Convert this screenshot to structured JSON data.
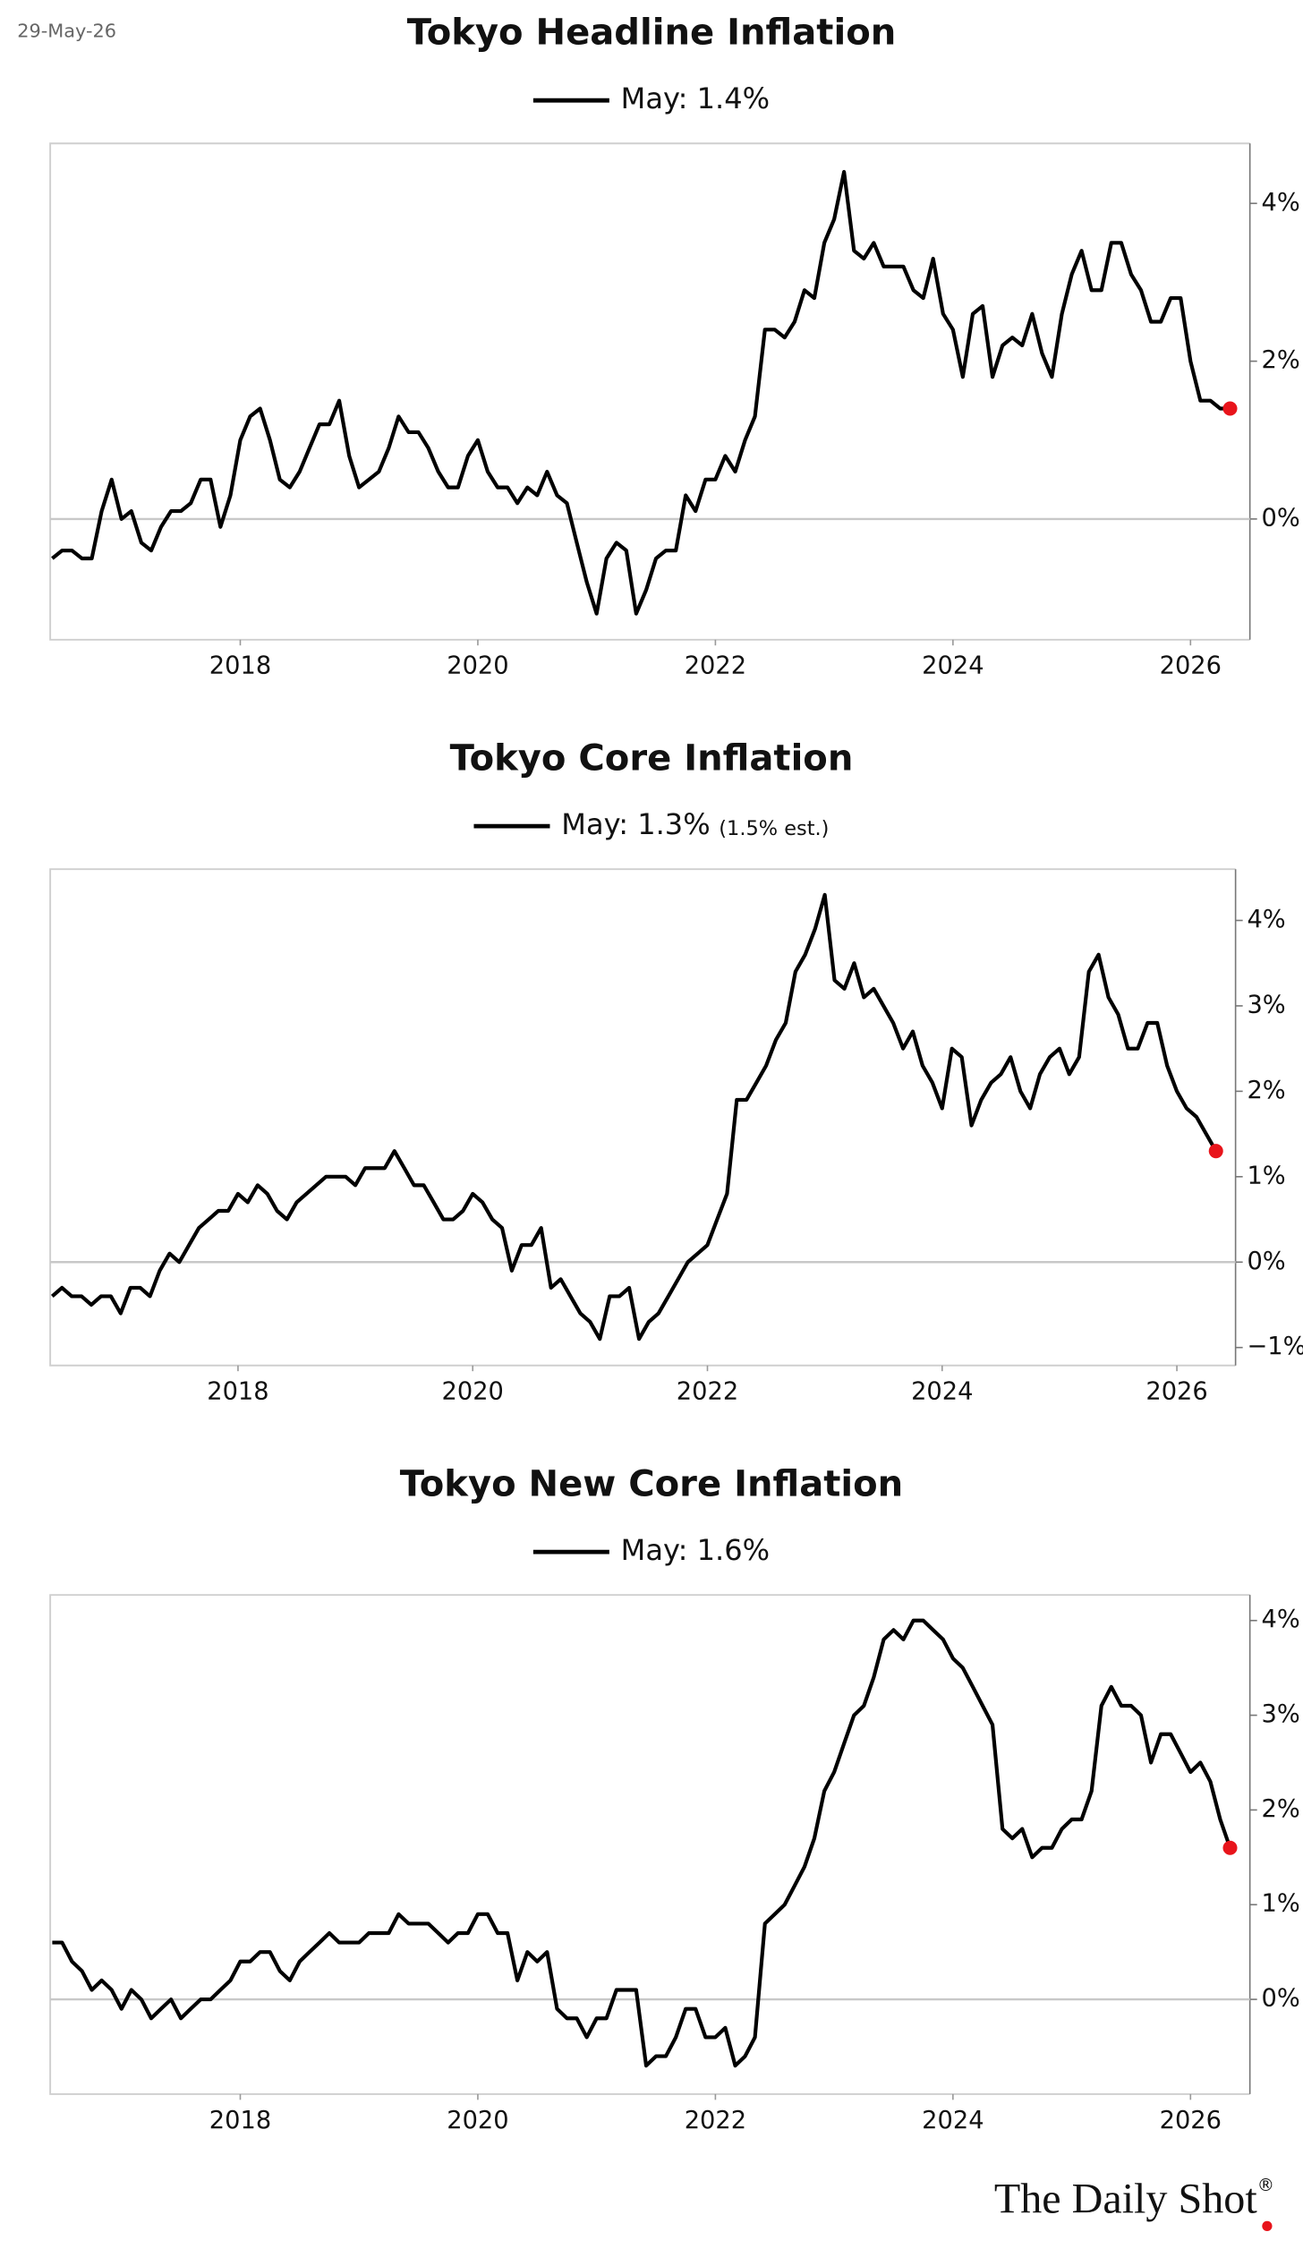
{
  "date": "29-May-26",
  "source": "The Daily Shot",
  "source_mark": "®",
  "chart_data": [
    {
      "type": "line",
      "title": "Tokyo Headline Inflation",
      "y_axis_side": "right",
      "zero_line": true,
      "last_point_color": "#e8141b",
      "x": [
        2016.417,
        2016.5,
        2016.583,
        2016.667,
        2016.75,
        2016.833,
        2016.917,
        2017,
        2017.083,
        2017.167,
        2017.25,
        2017.333,
        2017.417,
        2017.5,
        2017.583,
        2017.667,
        2017.75,
        2017.833,
        2017.917,
        2018,
        2018.083,
        2018.167,
        2018.25,
        2018.333,
        2018.417,
        2018.5,
        2018.583,
        2018.667,
        2018.75,
        2018.833,
        2018.917,
        2019,
        2019.083,
        2019.167,
        2019.25,
        2019.333,
        2019.417,
        2019.5,
        2019.583,
        2019.667,
        2019.75,
        2019.833,
        2019.917,
        2020,
        2020.083,
        2020.167,
        2020.25,
        2020.333,
        2020.417,
        2020.5,
        2020.583,
        2020.667,
        2020.75,
        2020.833,
        2020.917,
        2021,
        2021.083,
        2021.167,
        2021.25,
        2021.333,
        2021.417,
        2021.5,
        2021.583,
        2021.667,
        2021.75,
        2021.833,
        2021.917,
        2022,
        2022.083,
        2022.167,
        2022.25,
        2022.333,
        2022.417,
        2022.5,
        2022.583,
        2022.667,
        2022.75,
        2022.833,
        2022.917,
        2023,
        2023.083,
        2023.167,
        2023.25,
        2023.333,
        2023.417,
        2023.5,
        2023.583,
        2023.667,
        2023.75,
        2023.833,
        2023.917,
        2024,
        2024.083,
        2024.167,
        2024.25,
        2024.333,
        2024.417,
        2024.5,
        2024.583,
        2024.667,
        2024.75,
        2024.833,
        2024.917,
        2025,
        2025.083,
        2025.167,
        2025.25,
        2025.333,
        2025.417,
        2025.5,
        2025.583,
        2025.667,
        2025.75,
        2025.833,
        2025.917,
        2026,
        2026.083,
        2026.167,
        2026.25,
        2026.333
      ],
      "series": [
        {
          "name": "May: 1.4%",
          "color": "#000000",
          "values": [
            -0.5,
            -0.4,
            -0.4,
            -0.5,
            -0.5,
            0.1,
            0.5,
            0.0,
            0.1,
            -0.3,
            -0.4,
            -0.1,
            0.1,
            0.1,
            0.2,
            0.5,
            0.5,
            -0.1,
            0.3,
            1.0,
            1.3,
            1.4,
            1.0,
            0.5,
            0.4,
            0.6,
            0.9,
            1.2,
            1.2,
            1.5,
            0.8,
            0.4,
            0.5,
            0.6,
            0.9,
            1.3,
            1.1,
            1.1,
            0.9,
            0.6,
            0.4,
            0.4,
            0.8,
            1.0,
            0.6,
            0.4,
            0.4,
            0.2,
            0.4,
            0.3,
            0.6,
            0.3,
            0.2,
            -0.3,
            -0.8,
            -1.2,
            -0.5,
            -0.3,
            -0.4,
            -1.2,
            -0.9,
            -0.5,
            -0.4,
            -0.4,
            0.3,
            0.1,
            0.5,
            0.5,
            0.8,
            0.6,
            1.0,
            1.3,
            2.4,
            2.4,
            2.3,
            2.5,
            2.9,
            2.8,
            3.5,
            3.8,
            4.4,
            3.4,
            3.3,
            3.5,
            3.2,
            3.2,
            3.2,
            2.9,
            2.8,
            3.3,
            2.6,
            2.4,
            1.8,
            2.6,
            2.7,
            1.8,
            2.2,
            2.3,
            2.2,
            2.6,
            2.1,
            1.8,
            2.6,
            3.1,
            3.4,
            2.9,
            2.9,
            3.5,
            3.5,
            3.1,
            2.9,
            2.5,
            2.5,
            2.8,
            2.8,
            2.0,
            1.5,
            1.5,
            1.4,
            1.4
          ]
        }
      ],
      "xlim": [
        2016.4,
        2026.5
      ],
      "xticks": [
        2018,
        2020,
        2022,
        2024,
        2026
      ],
      "ylim": [
        -1.53,
        4.76
      ],
      "yticks": [
        {
          "value": 0,
          "label": "0%"
        },
        {
          "value": 2,
          "label": "2%"
        },
        {
          "value": 4,
          "label": "4%"
        }
      ]
    },
    {
      "type": "line",
      "title": "Tokyo Core Inflation",
      "legend_note": "(1.5% est.)",
      "y_axis_side": "right",
      "zero_line": true,
      "last_point_color": "#e8141b",
      "x": [
        2016.417,
        2016.5,
        2016.583,
        2016.667,
        2016.75,
        2016.833,
        2016.917,
        2017,
        2017.083,
        2017.167,
        2017.25,
        2017.333,
        2017.417,
        2017.5,
        2017.583,
        2017.667,
        2017.75,
        2017.833,
        2017.917,
        2018,
        2018.083,
        2018.167,
        2018.25,
        2018.333,
        2018.417,
        2018.5,
        2018.583,
        2018.667,
        2018.75,
        2018.833,
        2018.917,
        2019,
        2019.083,
        2019.167,
        2019.25,
        2019.333,
        2019.417,
        2019.5,
        2019.583,
        2019.667,
        2019.75,
        2019.833,
        2019.917,
        2020,
        2020.083,
        2020.167,
        2020.25,
        2020.333,
        2020.417,
        2020.5,
        2020.583,
        2020.667,
        2020.75,
        2020.833,
        2020.917,
        2021,
        2021.083,
        2021.167,
        2021.25,
        2021.333,
        2021.417,
        2021.5,
        2021.583,
        2021.667,
        2021.75,
        2021.833,
        2021.917,
        2022,
        2022.083,
        2022.167,
        2022.25,
        2022.333,
        2022.417,
        2022.5,
        2022.583,
        2022.667,
        2022.75,
        2022.833,
        2022.917,
        2023,
        2023.083,
        2023.167,
        2023.25,
        2023.333,
        2023.417,
        2023.5,
        2023.583,
        2023.667,
        2023.75,
        2023.833,
        2023.917,
        2024,
        2024.083,
        2024.167,
        2024.25,
        2024.333,
        2024.417,
        2024.5,
        2024.583,
        2024.667,
        2024.75,
        2024.833,
        2024.917,
        2025,
        2025.083,
        2025.167,
        2025.25,
        2025.333,
        2025.417,
        2025.5,
        2025.583,
        2025.667,
        2025.75,
        2025.833,
        2025.917,
        2026,
        2026.083,
        2026.167,
        2026.25,
        2026.333
      ],
      "series": [
        {
          "name": "May: 1.3%",
          "color": "#000000",
          "values": [
            -0.4,
            -0.3,
            -0.4,
            -0.4,
            -0.5,
            -0.4,
            -0.4,
            -0.6,
            -0.3,
            -0.3,
            -0.4,
            -0.1,
            0.1,
            0.0,
            0.2,
            0.4,
            0.5,
            0.6,
            0.6,
            0.8,
            0.7,
            0.9,
            0.8,
            0.6,
            0.5,
            0.7,
            0.8,
            0.9,
            1.0,
            1.0,
            1.0,
            0.9,
            1.1,
            1.1,
            1.1,
            1.3,
            1.1,
            0.9,
            0.9,
            0.7,
            0.5,
            0.5,
            0.6,
            0.8,
            0.7,
            0.5,
            0.4,
            -0.1,
            0.2,
            0.2,
            0.4,
            -0.3,
            -0.2,
            -0.4,
            -0.6,
            -0.7,
            -0.9,
            -0.4,
            -0.4,
            -0.3,
            -0.9,
            -0.7,
            -0.6,
            -0.4,
            -0.2,
            0.0,
            0.1,
            0.2,
            0.5,
            0.8,
            1.9,
            1.9,
            2.1,
            2.3,
            2.6,
            2.8,
            3.4,
            3.6,
            3.9,
            4.3,
            3.3,
            3.2,
            3.5,
            3.1,
            3.2,
            3.0,
            2.8,
            2.5,
            2.7,
            2.3,
            2.1,
            1.8,
            2.5,
            2.4,
            1.6,
            1.9,
            2.1,
            2.2,
            2.4,
            2.0,
            1.8,
            2.2,
            2.4,
            2.5,
            2.2,
            2.4,
            3.4,
            3.6,
            3.1,
            2.9,
            2.5,
            2.5,
            2.8,
            2.8,
            2.3,
            2.0,
            1.8,
            1.7,
            1.5,
            1.3
          ]
        }
      ],
      "xlim": [
        2016.4,
        2026.5
      ],
      "xticks": [
        2018,
        2020,
        2022,
        2024,
        2026
      ],
      "ylim": [
        -1.21,
        4.6
      ],
      "yticks": [
        {
          "value": -1,
          "label": "−1%"
        },
        {
          "value": 0,
          "label": "0%"
        },
        {
          "value": 1,
          "label": "1%"
        },
        {
          "value": 2,
          "label": "2%"
        },
        {
          "value": 3,
          "label": "3%"
        },
        {
          "value": 4,
          "label": "4%"
        }
      ]
    },
    {
      "type": "line",
      "title": "Tokyo New Core Inflation",
      "y_axis_side": "right",
      "zero_line": true,
      "last_point_color": "#e8141b",
      "x": [
        2016.417,
        2016.5,
        2016.583,
        2016.667,
        2016.75,
        2016.833,
        2016.917,
        2017,
        2017.083,
        2017.167,
        2017.25,
        2017.333,
        2017.417,
        2017.5,
        2017.583,
        2017.667,
        2017.75,
        2017.833,
        2017.917,
        2018,
        2018.083,
        2018.167,
        2018.25,
        2018.333,
        2018.417,
        2018.5,
        2018.583,
        2018.667,
        2018.75,
        2018.833,
        2018.917,
        2019,
        2019.083,
        2019.167,
        2019.25,
        2019.333,
        2019.417,
        2019.5,
        2019.583,
        2019.667,
        2019.75,
        2019.833,
        2019.917,
        2020,
        2020.083,
        2020.167,
        2020.25,
        2020.333,
        2020.417,
        2020.5,
        2020.583,
        2020.667,
        2020.75,
        2020.833,
        2020.917,
        2021,
        2021.083,
        2021.167,
        2021.25,
        2021.333,
        2021.417,
        2021.5,
        2021.583,
        2021.667,
        2021.75,
        2021.833,
        2021.917,
        2022,
        2022.083,
        2022.167,
        2022.25,
        2022.333,
        2022.417,
        2022.5,
        2022.583,
        2022.667,
        2022.75,
        2022.833,
        2022.917,
        2023,
        2023.083,
        2023.167,
        2023.25,
        2023.333,
        2023.417,
        2023.5,
        2023.583,
        2023.667,
        2023.75,
        2023.833,
        2023.917,
        2024,
        2024.083,
        2024.167,
        2024.25,
        2024.333,
        2024.417,
        2024.5,
        2024.583,
        2024.667,
        2024.75,
        2024.833,
        2024.917,
        2025,
        2025.083,
        2025.167,
        2025.25,
        2025.333,
        2025.417,
        2025.5,
        2025.583,
        2025.667,
        2025.75,
        2025.833,
        2025.917,
        2026,
        2026.083,
        2026.167,
        2026.25,
        2026.333
      ],
      "series": [
        {
          "name": "May: 1.6%",
          "color": "#000000",
          "values": [
            0.6,
            0.6,
            0.4,
            0.3,
            0.1,
            0.2,
            0.1,
            -0.1,
            0.1,
            0.0,
            -0.2,
            -0.1,
            0.0,
            -0.2,
            -0.1,
            0.0,
            0.0,
            0.1,
            0.2,
            0.4,
            0.4,
            0.5,
            0.5,
            0.3,
            0.2,
            0.4,
            0.5,
            0.6,
            0.7,
            0.6,
            0.6,
            0.6,
            0.7,
            0.7,
            0.7,
            0.9,
            0.8,
            0.8,
            0.8,
            0.7,
            0.6,
            0.7,
            0.7,
            0.9,
            0.9,
            0.7,
            0.7,
            0.2,
            0.5,
            0.4,
            0.5,
            -0.1,
            -0.2,
            -0.2,
            -0.4,
            -0.2,
            -0.2,
            0.1,
            0.1,
            0.1,
            -0.7,
            -0.6,
            -0.6,
            -0.4,
            -0.1,
            -0.1,
            -0.4,
            -0.4,
            -0.3,
            -0.7,
            -0.6,
            -0.4,
            0.8,
            0.9,
            1.0,
            1.2,
            1.4,
            1.7,
            2.2,
            2.4,
            2.7,
            3.0,
            3.1,
            3.4,
            3.8,
            3.9,
            3.8,
            4.0,
            4.0,
            3.9,
            3.8,
            3.6,
            3.5,
            3.3,
            3.1,
            2.9,
            1.8,
            1.7,
            1.8,
            1.5,
            1.6,
            1.6,
            1.8,
            1.9,
            1.9,
            2.2,
            3.1,
            3.3,
            3.1,
            3.1,
            3.0,
            2.5,
            2.8,
            2.8,
            2.6,
            2.4,
            2.5,
            2.3,
            1.9,
            1.6
          ]
        }
      ],
      "xlim": [
        2016.4,
        2026.5
      ],
      "xticks": [
        2018,
        2020,
        2022,
        2024,
        2026
      ],
      "ylim": [
        -1.0,
        4.27
      ],
      "yticks": [
        {
          "value": 0,
          "label": "0%"
        },
        {
          "value": 1,
          "label": "1%"
        },
        {
          "value": 2,
          "label": "2%"
        },
        {
          "value": 3,
          "label": "3%"
        },
        {
          "value": 4,
          "label": "4%"
        }
      ]
    }
  ]
}
